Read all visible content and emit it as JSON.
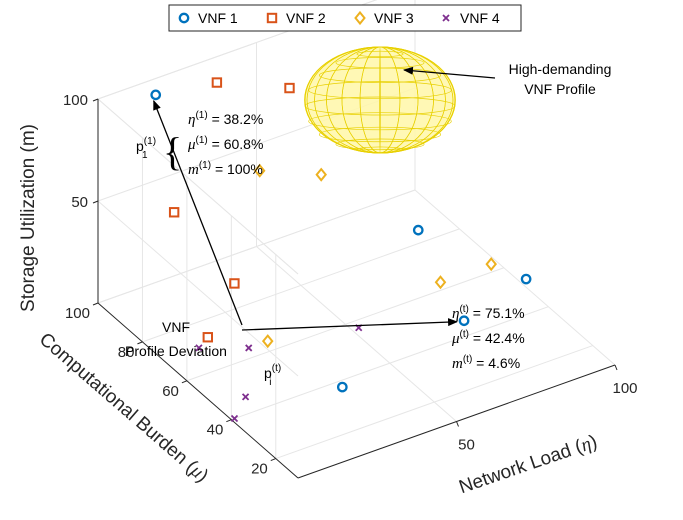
{
  "chart_data": {
    "type": "scatter",
    "dimensions": 3,
    "x_axis": {
      "label": "Network Load (",
      "symbol": "η",
      "close": ")",
      "ticks": [
        50,
        100
      ],
      "range": [
        0,
        100
      ]
    },
    "y_axis": {
      "label": "Computational Burden (",
      "symbol": "μ",
      "close": ")",
      "ticks": [
        20,
        40,
        60,
        80,
        100
      ],
      "range": [
        10,
        100
      ]
    },
    "z_axis": {
      "label": "Storage Utilization (m)",
      "ticks": [
        50,
        100
      ],
      "range": [
        0,
        100
      ]
    },
    "legend": {
      "placement": "top",
      "entries": [
        "VNF 1",
        "VNF 2",
        "VNF 3",
        "VNF 4"
      ]
    },
    "colors": {
      "VNF 1": "#0072BD",
      "VNF 2": "#D95319",
      "VNF 3": "#EDB120",
      "VNF 4": "#7E2F8E",
      "sphere": "#E8D000"
    },
    "series": [
      {
        "name": "VNF 1",
        "marker": "circle",
        "points": [
          {
            "x": 14,
            "y": 94,
            "z": 100
          },
          {
            "x": 80,
            "y": 70,
            "z": 20
          },
          {
            "x": 100,
            "y": 50,
            "z": 4
          },
          {
            "x": 28,
            "y": 30,
            "z": 10
          },
          {
            "x": 75.1,
            "y": 42.4,
            "z": 4.6
          }
        ]
      },
      {
        "name": "VNF 2",
        "marker": "square",
        "points": [
          {
            "x": 10,
            "y": 80,
            "z": 58
          },
          {
            "x": 34,
            "y": 95,
            "z": 94
          },
          {
            "x": 52,
            "y": 88,
            "z": 88
          },
          {
            "x": 8,
            "y": 62,
            "z": 15
          },
          {
            "x": 22,
            "y": 70,
            "z": 26
          }
        ]
      },
      {
        "name": "VNF 3",
        "marker": "diamond",
        "points": [
          {
            "x": 44,
            "y": 90,
            "z": 50
          },
          {
            "x": 62,
            "y": 88,
            "z": 40
          },
          {
            "x": 80,
            "y": 60,
            "z": 4
          },
          {
            "x": 96,
            "y": 60,
            "z": 4
          },
          {
            "x": 22,
            "y": 55,
            "z": 12
          }
        ]
      },
      {
        "name": "VNF 4",
        "marker": "x",
        "points": [
          {
            "x": 8,
            "y": 66,
            "z": 6
          },
          {
            "x": 16,
            "y": 55,
            "z": 12
          },
          {
            "x": 50,
            "y": 54,
            "z": 4
          },
          {
            "x": 8,
            "y": 45,
            "z": 2
          },
          {
            "x": 1,
            "y": 40,
            "z": 0
          }
        ]
      }
    ],
    "annotations": {
      "profile": {
        "name": "p",
        "sub": "1",
        "sup": "(1)",
        "lines": [
          {
            "sym": "η",
            "sup": "(1)",
            "val": " = 38.2%"
          },
          {
            "sym": "μ",
            "sup": "(1)",
            "val": " = 60.8%"
          },
          {
            "sym": "m",
            "sup": "(1)",
            "val": " = 100%"
          }
        ]
      },
      "current": {
        "lines": [
          {
            "sym": "η",
            "sup": "(t)",
            "val": " = 75.1%"
          },
          {
            "sym": "μ",
            "sup": "(t)",
            "val": " = 42.4%"
          },
          {
            "sym": "m",
            "sup": "(t)",
            "val": " = 4.6%"
          }
        ]
      },
      "deviation_label": [
        "VNF",
        "Profile Deviation"
      ],
      "pi": {
        "name": "p",
        "sub": "i",
        "sup": "(t)"
      },
      "sphere_label": [
        "High-demanding",
        "VNF Profile"
      ]
    }
  }
}
